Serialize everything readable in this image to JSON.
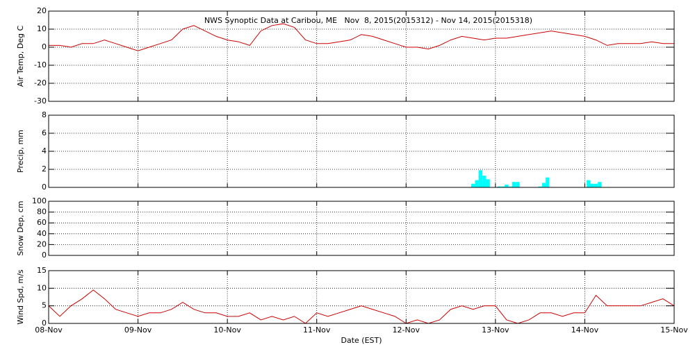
{
  "chart_data": [
    {
      "type": "line",
      "title": "NWS Synoptic Data at Caribou, ME   Nov  8, 2015(2015312) - Nov 14, 2015(2015318)",
      "ylabel": "Air Temp, Deg C",
      "color": "#cc0000",
      "x": [
        8,
        8.125,
        8.25,
        8.375,
        8.5,
        8.625,
        8.75,
        8.875,
        9,
        9.125,
        9.25,
        9.375,
        9.5,
        9.625,
        9.75,
        9.875,
        10,
        10.125,
        10.25,
        10.375,
        10.5,
        10.625,
        10.75,
        10.875,
        11,
        11.125,
        11.25,
        11.375,
        11.5,
        11.625,
        11.75,
        11.875,
        12,
        12.125,
        12.25,
        12.375,
        12.5,
        12.625,
        12.75,
        12.875,
        13,
        13.125,
        13.25,
        13.375,
        13.5,
        13.625,
        13.75,
        13.875,
        14,
        14.125,
        14.25,
        14.375,
        14.5,
        14.625,
        14.75,
        14.875,
        15
      ],
      "values": [
        1,
        1,
        0,
        2,
        2,
        4,
        2,
        0,
        -2,
        0,
        2,
        4,
        10,
        12,
        9,
        6,
        4,
        3,
        1,
        9,
        12,
        13,
        11,
        4,
        2,
        2,
        3,
        4,
        7,
        6,
        4,
        2,
        0,
        0,
        -1,
        1,
        4,
        6,
        5,
        4,
        5,
        5,
        6,
        7,
        8,
        9,
        8,
        7,
        6,
        4,
        1,
        2,
        2,
        2,
        3,
        2,
        2
      ],
      "ylim": [
        -30,
        20
      ],
      "yticks": [
        -30,
        -20,
        -10,
        0,
        10,
        20
      ],
      "grid": true
    },
    {
      "type": "bar",
      "ylabel": "Precip, mm",
      "color": "#00ffff",
      "x": [
        12.75,
        12.792,
        12.833,
        12.875,
        12.917,
        13.042,
        13.083,
        13.125,
        13.167,
        13.208,
        13.25,
        13.5,
        13.542,
        13.583,
        14.042,
        14.083,
        14.125,
        14.167
      ],
      "values": [
        0.4,
        0.8,
        1.9,
        1.3,
        0.9,
        0.1,
        0.1,
        0.3,
        0.1,
        0.6,
        0.6,
        0.1,
        0.5,
        1.1,
        0.8,
        0.4,
        0.4,
        0.6
      ],
      "ylim": [
        0,
        8
      ],
      "yticks": [
        0,
        2,
        4,
        6,
        8
      ],
      "grid": true
    },
    {
      "type": "line",
      "ylabel": "Snow Dep, cm",
      "ylim": [
        0,
        100
      ],
      "yticks": [
        0,
        20,
        40,
        60,
        80,
        100
      ],
      "grid": true
    },
    {
      "type": "line",
      "ylabel": "Wind Spd, m/s",
      "xlabel": "Date (EST)",
      "color": "#cc0000",
      "x": [
        8,
        8.125,
        8.25,
        8.375,
        8.5,
        8.625,
        8.75,
        8.875,
        9,
        9.125,
        9.25,
        9.375,
        9.5,
        9.625,
        9.75,
        9.875,
        10,
        10.125,
        10.25,
        10.375,
        10.5,
        10.625,
        10.75,
        10.875,
        11,
        11.125,
        11.25,
        11.375,
        11.5,
        11.625,
        11.75,
        11.875,
        12,
        12.125,
        12.25,
        12.375,
        12.5,
        12.625,
        12.75,
        12.875,
        13,
        13.125,
        13.25,
        13.375,
        13.5,
        13.625,
        13.75,
        13.875,
        14,
        14.125,
        14.25,
        14.375,
        14.5,
        14.625,
        14.75,
        14.875,
        15
      ],
      "values": [
        5,
        2,
        5,
        7,
        9.5,
        7,
        4,
        3,
        2,
        3,
        3,
        4,
        6,
        4,
        3,
        3,
        2,
        2,
        3,
        1,
        2,
        1,
        2,
        0,
        3,
        2,
        3,
        4,
        5,
        4,
        3,
        2,
        0,
        1,
        0,
        1,
        4,
        5,
        4,
        5,
        5,
        1,
        0,
        1,
        3,
        3,
        2,
        3,
        3,
        8,
        5,
        5,
        5,
        5,
        6,
        7,
        5
      ],
      "ylim": [
        0,
        15
      ],
      "yticks": [
        0,
        5,
        10,
        15
      ],
      "grid": true,
      "xlim": [
        8,
        15
      ],
      "xticks": [
        {
          "value": 8,
          "label": "08-Nov"
        },
        {
          "value": 9,
          "label": "09-Nov"
        },
        {
          "value": 10,
          "label": "10-Nov"
        },
        {
          "value": 11,
          "label": "11-Nov"
        },
        {
          "value": 12,
          "label": "12-Nov"
        },
        {
          "value": 13,
          "label": "13-Nov"
        },
        {
          "value": 14,
          "label": "14-Nov"
        },
        {
          "value": 15,
          "label": "15-Nov"
        }
      ]
    }
  ]
}
